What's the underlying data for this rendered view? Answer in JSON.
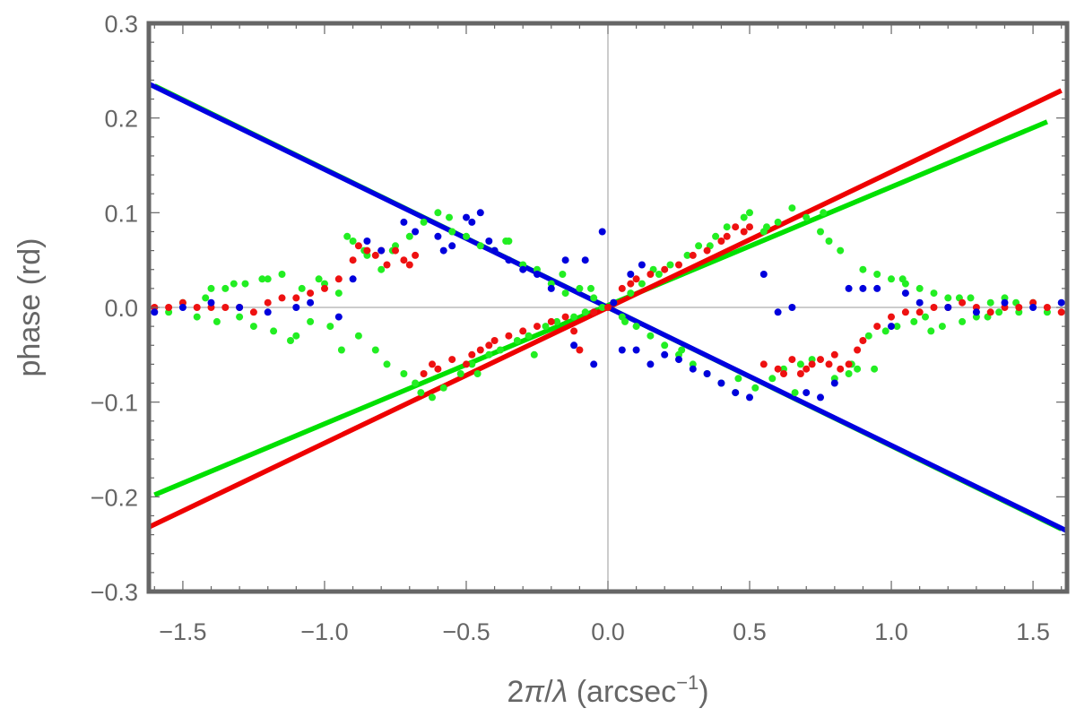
{
  "chart_data": {
    "type": "scatter",
    "title": "",
    "xlabel": "2π/λ (arcsec⁻¹)",
    "xlabel_parts": {
      "prefix": "2",
      "pi": "π",
      "slash": "/",
      "lambda": "λ",
      "unit": " (arcsec",
      "exponent": "−1",
      "close": ")"
    },
    "ylabel": "phase (rd)",
    "xlim": [
      -1.62,
      1.62
    ],
    "ylim": [
      -0.3,
      0.3
    ],
    "xticks": [
      -1.5,
      -1.0,
      -0.5,
      0.0,
      0.5,
      1.0,
      1.5
    ],
    "xtick_labels": [
      "−1.5",
      "−1.0",
      "−0.5",
      "0.0",
      "0.5",
      "1.0",
      "1.5"
    ],
    "yticks": [
      -0.3,
      -0.2,
      -0.1,
      0.0,
      0.1,
      0.2,
      0.3
    ],
    "ytick_labels": [
      "−0.3",
      "−0.2",
      "−0.1",
      "0.0",
      "0.1",
      "0.2",
      "0.3"
    ],
    "grid": false,
    "zero_lines": true,
    "fit_lines": [
      {
        "name": "green-fit",
        "color": "#00e000",
        "x": [
          -1.6,
          1.55
        ],
        "y": [
          -0.198,
          0.196
        ]
      },
      {
        "name": "green-fit-steep",
        "color": "#00e000",
        "x": [
          -1.6,
          1.6
        ],
        "y": [
          0.234,
          -0.234
        ]
      },
      {
        "name": "red-fit",
        "color": "#ee0000",
        "x": [
          -1.62,
          1.6
        ],
        "y": [
          -0.232,
          0.229
        ]
      },
      {
        "name": "blue-fit",
        "color": "#0000e0",
        "x": [
          -1.62,
          1.62
        ],
        "y": [
          0.236,
          -0.236
        ]
      }
    ],
    "series": [
      {
        "name": "green",
        "color": "#22ee22",
        "x": [
          -1.55,
          -1.5,
          -1.45,
          -1.42,
          -1.38,
          -1.35,
          -1.3,
          -1.28,
          -1.25,
          -1.2,
          -1.18,
          -1.15,
          -1.1,
          -1.08,
          -1.05,
          -1.0,
          -0.98,
          -0.95,
          -0.92,
          -0.9,
          -0.88,
          -0.85,
          -0.82,
          -0.8,
          -0.78,
          -0.75,
          -0.72,
          -0.7,
          -0.68,
          -0.65,
          -0.62,
          -0.6,
          -0.58,
          -0.55,
          -0.52,
          -0.5,
          -0.48,
          -0.45,
          -0.42,
          -0.4,
          -0.38,
          -0.35,
          -0.32,
          -0.3,
          -0.28,
          -0.25,
          -0.22,
          -0.2,
          -0.18,
          -0.15,
          -0.12,
          -0.1,
          -0.08,
          -0.05,
          -0.02,
          0.02,
          0.05,
          0.08,
          0.1,
          0.12,
          0.15,
          0.18,
          0.2,
          0.22,
          0.25,
          0.28,
          0.3,
          0.32,
          0.35,
          0.38,
          0.4,
          0.42,
          0.45,
          0.48,
          0.5,
          0.52,
          0.55,
          0.58,
          0.6,
          0.62,
          0.65,
          0.68,
          0.7,
          0.72,
          0.75,
          0.78,
          0.8,
          0.82,
          0.85,
          0.88,
          0.9,
          0.92,
          0.95,
          0.98,
          1.0,
          1.02,
          1.05,
          1.08,
          1.1,
          1.12,
          1.15,
          1.18,
          1.2,
          1.25,
          1.28,
          1.3,
          1.35,
          1.38,
          1.4,
          1.45,
          1.5,
          1.55,
          -1.4,
          -1.32,
          -1.22,
          -1.12,
          -1.02,
          -0.94,
          -0.86,
          -0.76,
          -0.66,
          -0.56,
          -0.46,
          -0.36,
          -0.26,
          -0.16,
          -0.06,
          0.06,
          0.16,
          0.26,
          0.36,
          0.46,
          0.56,
          0.66,
          0.76,
          0.86,
          0.94,
          1.04,
          1.14,
          1.24,
          1.34,
          1.44
        ],
        "y": [
          -0.005,
          0.005,
          -0.01,
          0.01,
          -0.015,
          0.02,
          -0.01,
          0.025,
          -0.02,
          0.03,
          -0.025,
          0.035,
          -0.03,
          0.02,
          -0.015,
          0.025,
          -0.02,
          0.015,
          0.075,
          0.07,
          -0.03,
          0.055,
          -0.045,
          0.04,
          -0.06,
          0.065,
          -0.07,
          0.075,
          -0.08,
          0.09,
          -0.095,
          0.1,
          -0.085,
          0.08,
          -0.07,
          0.075,
          -0.06,
          0.065,
          -0.05,
          0.06,
          -0.045,
          0.07,
          -0.035,
          0.045,
          -0.03,
          0.04,
          -0.02,
          0.025,
          -0.015,
          0.015,
          -0.01,
          0.02,
          -0.005,
          0.01,
          0.0,
          0.005,
          -0.01,
          0.015,
          -0.02,
          0.025,
          -0.03,
          0.035,
          -0.04,
          0.045,
          -0.05,
          0.055,
          -0.06,
          0.065,
          -0.07,
          0.075,
          -0.08,
          0.085,
          -0.09,
          0.095,
          0.1,
          -0.085,
          0.08,
          -0.075,
          0.09,
          -0.065,
          0.105,
          -0.06,
          0.095,
          -0.055,
          0.08,
          0.07,
          -0.075,
          0.06,
          -0.07,
          -0.065,
          0.04,
          -0.03,
          0.035,
          -0.025,
          0.03,
          -0.02,
          0.025,
          -0.015,
          0.02,
          -0.01,
          0.015,
          -0.02,
          0.01,
          -0.015,
          0.01,
          -0.01,
          0.005,
          -0.005,
          0.01,
          -0.005,
          0.005,
          -0.005,
          0.02,
          0.025,
          0.03,
          -0.035,
          0.03,
          -0.045,
          0.06,
          0.06,
          -0.09,
          0.095,
          -0.07,
          0.07,
          -0.05,
          0.035,
          0.02,
          -0.015,
          0.04,
          -0.045,
          0.065,
          -0.075,
          0.085,
          -0.09,
          0.1,
          -0.06,
          -0.065,
          0.03,
          -0.025,
          0.01,
          -0.01,
          0.005
        ]
      },
      {
        "name": "red",
        "color": "#ee1111",
        "x": [
          -1.6,
          -1.55,
          -1.5,
          -1.45,
          -1.4,
          -1.35,
          -1.3,
          -1.25,
          -1.2,
          -1.15,
          -1.1,
          -1.05,
          -1.0,
          -0.95,
          -0.9,
          -0.88,
          -0.85,
          -0.82,
          -0.8,
          -0.78,
          -0.75,
          -0.72,
          -0.7,
          -0.68,
          -0.65,
          -0.62,
          -0.6,
          -0.55,
          -0.5,
          -0.48,
          -0.45,
          -0.42,
          -0.4,
          -0.35,
          -0.3,
          -0.25,
          -0.2,
          -0.15,
          -0.12,
          -0.1,
          -0.05,
          0.0,
          0.05,
          0.08,
          0.1,
          0.15,
          0.2,
          0.25,
          0.3,
          0.35,
          0.4,
          0.42,
          0.45,
          0.48,
          0.5,
          0.55,
          0.6,
          0.62,
          0.65,
          0.68,
          0.7,
          0.72,
          0.75,
          0.78,
          0.8,
          0.82,
          0.85,
          0.88,
          0.9,
          0.95,
          1.0,
          1.05,
          1.1,
          1.15,
          1.2,
          1.25,
          1.3,
          1.35,
          1.4,
          1.45,
          1.5,
          1.55,
          1.6
        ],
        "y": [
          0.0,
          0.0,
          0.005,
          0.0,
          0.0,
          0.0,
          0.0,
          -0.005,
          0.005,
          0.01,
          0.01,
          0.015,
          0.02,
          0.03,
          0.05,
          0.065,
          0.06,
          0.055,
          0.06,
          0.045,
          0.06,
          0.05,
          0.045,
          0.055,
          -0.07,
          -0.06,
          -0.065,
          -0.055,
          -0.06,
          -0.05,
          -0.045,
          -0.04,
          -0.035,
          -0.03,
          -0.025,
          -0.02,
          -0.015,
          -0.01,
          -0.025,
          -0.045,
          -0.005,
          0.0,
          0.02,
          0.025,
          0.03,
          0.035,
          0.04,
          0.045,
          0.055,
          0.06,
          0.07,
          0.075,
          0.085,
          0.08,
          0.085,
          -0.06,
          -0.065,
          -0.07,
          -0.055,
          -0.07,
          -0.065,
          -0.06,
          -0.055,
          -0.06,
          -0.05,
          -0.065,
          -0.06,
          -0.045,
          -0.035,
          -0.02,
          -0.01,
          -0.005,
          -0.005,
          0.0,
          0.0,
          0.005,
          0.0,
          -0.005,
          0.0,
          0.0,
          0.005,
          0.0,
          -0.005
        ]
      },
      {
        "name": "blue",
        "color": "#0000dd",
        "x": [
          -1.6,
          -1.5,
          -1.4,
          -1.3,
          -1.2,
          -1.1,
          -1.05,
          -0.95,
          -0.9,
          -0.85,
          -0.8,
          -0.72,
          -0.68,
          -0.6,
          -0.58,
          -0.55,
          -0.5,
          -0.48,
          -0.45,
          -0.42,
          -0.4,
          -0.35,
          -0.3,
          -0.25,
          -0.2,
          -0.15,
          -0.12,
          -0.08,
          -0.05,
          -0.02,
          0.02,
          0.05,
          0.08,
          0.1,
          0.12,
          0.15,
          0.2,
          0.25,
          0.3,
          0.35,
          0.4,
          0.45,
          0.5,
          0.55,
          0.6,
          0.65,
          0.7,
          0.75,
          0.8,
          0.85,
          0.9,
          0.95,
          1.0,
          1.05,
          1.1,
          1.2,
          1.3,
          1.4,
          1.5,
          1.6
        ],
        "y": [
          -0.005,
          0.0,
          0.005,
          0.0,
          -0.005,
          0.0,
          0.005,
          -0.01,
          0.03,
          0.07,
          0.06,
          0.09,
          0.08,
          0.075,
          0.06,
          0.065,
          0.095,
          0.09,
          0.1,
          0.07,
          0.06,
          0.05,
          0.04,
          0.035,
          0.02,
          0.05,
          -0.04,
          0.05,
          -0.06,
          0.08,
          0.005,
          -0.045,
          0.035,
          -0.045,
          0.045,
          -0.06,
          -0.05,
          -0.055,
          -0.065,
          -0.07,
          -0.08,
          -0.09,
          -0.095,
          0.035,
          -0.005,
          0.0,
          -0.09,
          -0.095,
          -0.08,
          0.02,
          0.02,
          0.02,
          -0.02,
          0.015,
          0.005,
          0.0,
          -0.005,
          0.005,
          0.0,
          0.005
        ]
      }
    ]
  }
}
